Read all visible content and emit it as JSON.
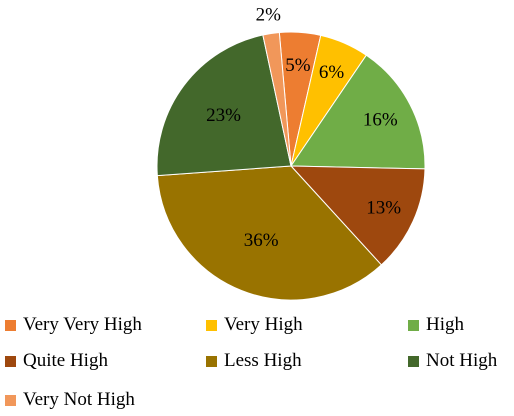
{
  "chart_data": {
    "type": "pie",
    "title": "",
    "start_angle_deg": -5,
    "direction": "clockwise",
    "series": [
      {
        "name": "",
        "slices": [
          {
            "label": "Very Very High",
            "value": 5,
            "display": "5%",
            "color": "#ed7d31"
          },
          {
            "label": "Very High",
            "value": 6,
            "display": "6%",
            "color": "#ffc000"
          },
          {
            "label": "High",
            "value": 16,
            "display": "16%",
            "color": "#70ad47"
          },
          {
            "label": "Quite High",
            "value": 13,
            "display": "13%",
            "color": "#9e480e"
          },
          {
            "label": "Less High",
            "value": 36,
            "display": "36%",
            "color": "#997300"
          },
          {
            "label": "Not High",
            "value": 23,
            "display": "23%",
            "color": "#43682b"
          },
          {
            "label": "Very Not High",
            "value": 2,
            "display": "2%",
            "color": "#f1975a"
          }
        ]
      }
    ],
    "legend": {
      "position": "bottom",
      "columns": 3
    }
  }
}
